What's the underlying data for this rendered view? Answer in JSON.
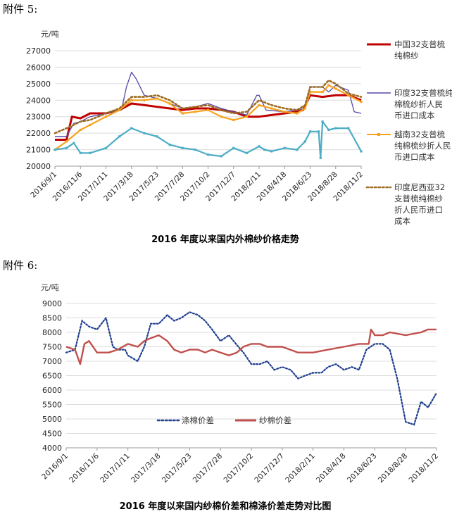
{
  "attachments": [
    "附件 5:",
    "附件 6:"
  ],
  "chart_data": [
    {
      "type": "line",
      "title": "2016 年度以来国内外棉纱价格走势",
      "ylabel": "元/吨",
      "ylim": [
        20000,
        27000
      ],
      "yticks": [
        20000,
        21000,
        22000,
        23000,
        24000,
        25000,
        26000,
        27000
      ],
      "x_tick_labels": [
        "2016/9/1",
        "2016/11/6",
        "2017/1/11",
        "2017/3/18",
        "2017/5/23",
        "2017/7/28",
        "2017/10/2",
        "2017/12/7",
        "2018/2/11",
        "2018/4/18",
        "2018/6/23",
        "2018/8/28",
        "2018/11/2"
      ],
      "legend": "right",
      "series": [
        {
          "name": "中国32支普梳纯棉纱",
          "color": "#c00000",
          "style": "thick",
          "x": [
            "2016/9/1",
            "2016/10/1",
            "2016/10/15",
            "2016/11/6",
            "2016/12/1",
            "2017/1/11",
            "2017/2/15",
            "2017/3/18",
            "2017/4/20",
            "2017/5/23",
            "2017/6/25",
            "2017/7/28",
            "2017/8/30",
            "2017/10/2",
            "2017/11/5",
            "2017/12/7",
            "2018/1/10",
            "2018/2/11",
            "2018/3/15",
            "2018/4/18",
            "2018/5/20",
            "2018/6/5",
            "2018/6/23",
            "2018/7/25",
            "2018/8/28",
            "2018/9/30",
            "2018/11/2"
          ],
          "values": [
            21600,
            21600,
            23000,
            22900,
            23200,
            23200,
            23400,
            23800,
            23700,
            23600,
            23500,
            23400,
            23500,
            23500,
            23400,
            23300,
            23000,
            23000,
            23100,
            23200,
            23300,
            23400,
            24300,
            24200,
            24300,
            24300,
            24000
          ]
        },
        {
          "name": "印度32支普梳纯棉梳纱折人民币进口成本",
          "color": "#5a4aa8",
          "style": "thin",
          "x": [
            "2016/9/1",
            "2016/10/1",
            "2016/10/20",
            "2016/11/6",
            "2016/12/1",
            "2017/1/11",
            "2017/2/20",
            "2017/3/5",
            "2017/3/18",
            "2017/3/30",
            "2017/4/20",
            "2017/5/23",
            "2017/6/25",
            "2017/7/28",
            "2017/8/30",
            "2017/10/2",
            "2017/11/5",
            "2017/12/7",
            "2018/1/10",
            "2018/2/5",
            "2018/2/11",
            "2018/3/1",
            "2018/4/18",
            "2018/5/20",
            "2018/6/10",
            "2018/6/23",
            "2018/7/25",
            "2018/8/10",
            "2018/8/28",
            "2018/9/30",
            "2018/10/15",
            "2018/11/2"
          ],
          "values": [
            21800,
            21800,
            22600,
            22700,
            23000,
            23200,
            23400,
            24800,
            25700,
            25300,
            24300,
            24100,
            23800,
            23500,
            23600,
            23800,
            23500,
            23300,
            23100,
            24300,
            24300,
            23400,
            23300,
            23400,
            23500,
            24800,
            24800,
            24500,
            24900,
            24600,
            23300,
            23200
          ]
        },
        {
          "name": "越南32支普梳纯棉梳纱折人民币进口成本",
          "color": "#f7a21b",
          "style": "marker",
          "x": [
            "2016/9/1",
            "2016/10/1",
            "2016/11/6",
            "2016/12/1",
            "2017/1/11",
            "2017/2/15",
            "2017/3/18",
            "2017/4/20",
            "2017/5/23",
            "2017/6/25",
            "2017/7/28",
            "2017/8/30",
            "2017/10/2",
            "2017/11/5",
            "2017/12/7",
            "2018/1/10",
            "2018/2/11",
            "2018/3/15",
            "2018/4/18",
            "2018/5/20",
            "2018/6/10",
            "2018/6/23",
            "2018/7/25",
            "2018/8/10",
            "2018/8/28",
            "2018/9/30",
            "2018/11/2"
          ],
          "values": [
            21000,
            21500,
            22200,
            22500,
            23000,
            23400,
            24000,
            24000,
            24100,
            23800,
            23200,
            23300,
            23400,
            23000,
            22800,
            23000,
            23700,
            23500,
            23300,
            23200,
            23500,
            24500,
            24500,
            24900,
            24700,
            24300,
            23900
          ]
        },
        {
          "name": "印度尼西亚32支普梳纯棉纱折人民币进口成本",
          "color": "#9c6b22",
          "style": "dotted",
          "x": [
            "2016/9/1",
            "2016/10/1",
            "2016/11/6",
            "2016/12/1",
            "2017/1/11",
            "2017/2/15",
            "2017/3/18",
            "2017/4/20",
            "2017/5/23",
            "2017/6/25",
            "2017/7/28",
            "2017/8/30",
            "2017/10/2",
            "2017/11/5",
            "2017/12/7",
            "2018/1/10",
            "2018/2/11",
            "2018/3/15",
            "2018/4/18",
            "2018/5/20",
            "2018/6/10",
            "2018/6/23",
            "2018/7/25",
            "2018/8/10",
            "2018/8/28",
            "2018/9/30",
            "2018/11/2"
          ],
          "values": [
            22000,
            22300,
            22700,
            22800,
            23200,
            23500,
            24200,
            24200,
            24300,
            24000,
            23500,
            23600,
            23700,
            23400,
            23200,
            23300,
            24000,
            23700,
            23500,
            23400,
            23700,
            24800,
            24800,
            25200,
            25000,
            24400,
            24200
          ]
        },
        {
          "name": "",
          "color": "#4bacc6",
          "style": "marker-teal",
          "x": [
            "2016/9/1",
            "2016/10/1",
            "2016/10/20",
            "2016/11/6",
            "2016/12/1",
            "2017/1/11",
            "2017/2/15",
            "2017/3/18",
            "2017/4/20",
            "2017/5/23",
            "2017/6/25",
            "2017/7/28",
            "2017/8/30",
            "2017/10/2",
            "2017/11/5",
            "2017/12/7",
            "2018/1/10",
            "2018/2/11",
            "2018/2/25",
            "2018/3/15",
            "2018/4/18",
            "2018/5/20",
            "2018/6/10",
            "2018/6/23",
            "2018/7/15",
            "2018/7/20",
            "2018/7/25",
            "2018/8/10",
            "2018/8/28",
            "2018/9/30",
            "2018/11/2"
          ],
          "values": [
            21000,
            21100,
            21400,
            20800,
            20800,
            21100,
            21800,
            22300,
            22000,
            21800,
            21300,
            21100,
            21000,
            20700,
            20600,
            21100,
            20800,
            21200,
            21000,
            20900,
            21100,
            21000,
            21500,
            22100,
            22100,
            20500,
            22700,
            22200,
            22300,
            22300,
            20900
          ]
        }
      ]
    },
    {
      "type": "line",
      "title": "2016 年度以来国内纱棉价差和棉涤价差走势对比图",
      "ylabel": "元/吨",
      "ylim": [
        4000,
        9000
      ],
      "yticks": [
        4000,
        4500,
        5000,
        5500,
        6000,
        6500,
        7000,
        7500,
        8000,
        8500,
        9000
      ],
      "x_tick_labels": [
        "2016/9/1",
        "2016/11/6",
        "2017/1/11",
        "2017/3/18",
        "2017/5/23",
        "2017/7/28",
        "2017/10/2",
        "2017/12/7",
        "2018/2/11",
        "2018/4/18",
        "2018/6/23",
        "2018/8/28",
        "2018/11/2"
      ],
      "legend": "center",
      "series": [
        {
          "name": "涤棉价差",
          "color": "#1f3f8f",
          "style": "dotted",
          "x": [
            "2016/9/1",
            "2016/9/20",
            "2016/10/5",
            "2016/10/20",
            "2016/11/6",
            "2016/11/25",
            "2016/12/10",
            "2016/12/20",
            "2017/1/5",
            "2017/1/11",
            "2017/2/1",
            "2017/2/15",
            "2017/3/1",
            "2017/3/18",
            "2017/4/5",
            "2017/4/20",
            "2017/5/5",
            "2017/5/23",
            "2017/6/10",
            "2017/6/25",
            "2017/7/10",
            "2017/7/28",
            "2017/8/15",
            "2017/8/30",
            "2017/9/15",
            "2017/10/2",
            "2017/10/20",
            "2017/11/5",
            "2017/11/20",
            "2017/12/7",
            "2017/12/25",
            "2018/1/10",
            "2018/1/25",
            "2018/2/11",
            "2018/3/1",
            "2018/3/15",
            "2018/4/1",
            "2018/4/18",
            "2018/5/5",
            "2018/5/20",
            "2018/6/5",
            "2018/6/23",
            "2018/7/10",
            "2018/7/25",
            "2018/8/10",
            "2018/8/28",
            "2018/9/15",
            "2018/9/30",
            "2018/10/15",
            "2018/11/2"
          ],
          "values": [
            7300,
            7400,
            8400,
            8200,
            8100,
            8500,
            7500,
            7400,
            7400,
            7200,
            7000,
            7500,
            8300,
            8300,
            8600,
            8400,
            8500,
            8700,
            8600,
            8400,
            8100,
            7700,
            7900,
            7600,
            7300,
            6900,
            6900,
            7000,
            6700,
            6800,
            6700,
            6400,
            6500,
            6600,
            6600,
            6800,
            6900,
            6700,
            6800,
            6700,
            7400,
            7600,
            7600,
            7400,
            6400,
            4900,
            4800,
            5600,
            5400,
            5900
          ]
        },
        {
          "name": "纱棉价差",
          "color": "#c0504d",
          "style": "thick",
          "x": [
            "2016/9/1",
            "2016/9/20",
            "2016/10/1",
            "2016/10/10",
            "2016/10/20",
            "2016/11/6",
            "2016/12/1",
            "2016/12/20",
            "2017/1/11",
            "2017/2/1",
            "2017/2/15",
            "2017/3/1",
            "2017/3/18",
            "2017/4/5",
            "2017/4/20",
            "2017/5/5",
            "2017/5/23",
            "2017/6/10",
            "2017/6/25",
            "2017/7/10",
            "2017/7/28",
            "2017/8/15",
            "2017/9/1",
            "2017/9/15",
            "2017/10/2",
            "2017/10/20",
            "2017/11/5",
            "2017/12/7",
            "2018/1/10",
            "2018/2/11",
            "2018/3/15",
            "2018/4/18",
            "2018/5/20",
            "2018/6/10",
            "2018/6/15",
            "2018/6/23",
            "2018/7/10",
            "2018/7/25",
            "2018/8/28",
            "2018/9/30",
            "2018/10/15",
            "2018/11/2"
          ],
          "values": [
            7500,
            7400,
            6900,
            7600,
            7700,
            7300,
            7300,
            7400,
            7600,
            7500,
            7700,
            7800,
            7900,
            7700,
            7400,
            7300,
            7400,
            7400,
            7300,
            7400,
            7300,
            7200,
            7300,
            7500,
            7600,
            7600,
            7500,
            7500,
            7300,
            7300,
            7400,
            7500,
            7600,
            7600,
            8100,
            7900,
            7900,
            8000,
            7900,
            8000,
            8100,
            8100
          ]
        }
      ]
    }
  ]
}
